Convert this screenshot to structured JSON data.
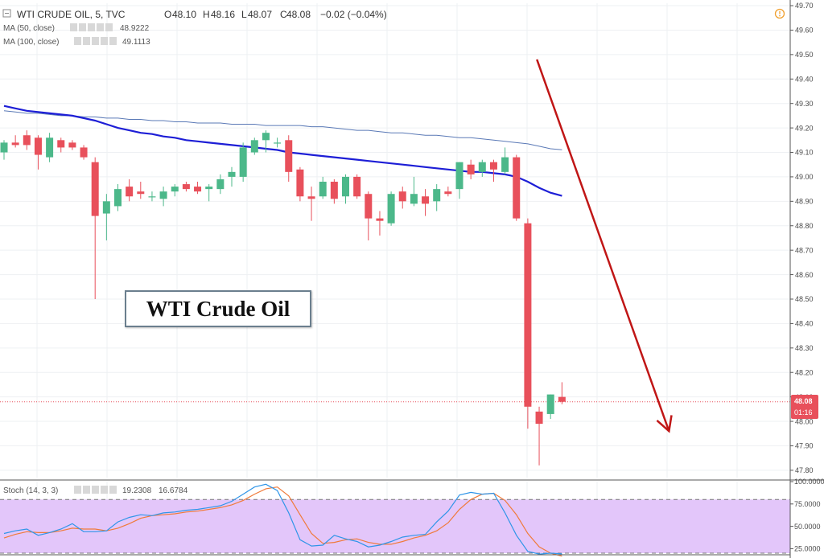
{
  "legend": {
    "symbol": "WTI CRUDE OIL, 5, TVC",
    "ohlc": [
      {
        "k": "O",
        "v": "48.10"
      },
      {
        "k": "H",
        "v": "48.16"
      },
      {
        "k": "L",
        "v": "48.07"
      },
      {
        "k": "C",
        "v": "48.08"
      }
    ],
    "change": "−0.02 (−0.04%)",
    "ma50_label": "MA (50, close)",
    "ma50_value": "48.9222",
    "ma100_label": "MA (100, close)",
    "ma100_value": "49.1113",
    "stoch_label": "Stoch (14, 3, 3)",
    "stoch_k": "19.2308",
    "stoch_d": "16.6784"
  },
  "price_tag": {
    "value": "48.08",
    "countdown": "01:16"
  },
  "overlay_title": "WTI Crude Oil",
  "colors": {
    "up": "#4cb88a",
    "down": "#e8505b",
    "ma50": "#1d1ed6",
    "ma100": "#5a79b6",
    "arrow": "#c01616",
    "stoch_k": "#2f95e8",
    "stoch_d": "#f07a3a",
    "stoch_band": "#e3c6fa",
    "price_line": "#e8505b"
  },
  "icons": {
    "collapse": "collapse-square-icon",
    "alert": "alert-circle-icon"
  },
  "chart_data": {
    "type": "candlestick",
    "y_ticks": [
      "49.70",
      "49.60",
      "49.50",
      "49.40",
      "49.30",
      "49.20",
      "49.10",
      "49.00",
      "48.90",
      "48.80",
      "48.70",
      "48.60",
      "48.50",
      "48.40",
      "48.30",
      "48.20",
      "48.10",
      "48.00",
      "47.90",
      "47.80"
    ],
    "ylim": [
      47.77,
      49.71
    ],
    "candles": [
      {
        "o": 49.1,
        "h": 49.15,
        "l": 49.07,
        "c": 49.14
      },
      {
        "o": 49.14,
        "h": 49.17,
        "l": 49.12,
        "c": 49.13
      },
      {
        "o": 49.17,
        "h": 49.19,
        "l": 49.11,
        "c": 49.13
      },
      {
        "o": 49.16,
        "h": 49.17,
        "l": 49.03,
        "c": 49.09
      },
      {
        "o": 49.08,
        "h": 49.18,
        "l": 49.06,
        "c": 49.16
      },
      {
        "o": 49.15,
        "h": 49.16,
        "l": 49.1,
        "c": 49.12
      },
      {
        "o": 49.14,
        "h": 49.15,
        "l": 49.11,
        "c": 49.12
      },
      {
        "o": 49.12,
        "h": 49.13,
        "l": 49.07,
        "c": 49.08
      },
      {
        "o": 49.06,
        "h": 49.08,
        "l": 48.5,
        "c": 48.84
      },
      {
        "o": 48.85,
        "h": 48.93,
        "l": 48.74,
        "c": 48.9
      },
      {
        "o": 48.88,
        "h": 48.97,
        "l": 48.86,
        "c": 48.95
      },
      {
        "o": 48.96,
        "h": 48.99,
        "l": 48.9,
        "c": 48.92
      },
      {
        "o": 48.94,
        "h": 48.98,
        "l": 48.91,
        "c": 48.93
      },
      {
        "o": 48.92,
        "h": 48.94,
        "l": 48.9,
        "c": 48.92
      },
      {
        "o": 48.91,
        "h": 48.96,
        "l": 48.88,
        "c": 48.94
      },
      {
        "o": 48.94,
        "h": 48.97,
        "l": 48.92,
        "c": 48.96
      },
      {
        "o": 48.97,
        "h": 48.98,
        "l": 48.94,
        "c": 48.95
      },
      {
        "o": 48.96,
        "h": 48.98,
        "l": 48.93,
        "c": 48.94
      },
      {
        "o": 48.95,
        "h": 48.97,
        "l": 48.9,
        "c": 48.96
      },
      {
        "o": 48.95,
        "h": 49.01,
        "l": 48.93,
        "c": 48.99
      },
      {
        "o": 49.0,
        "h": 49.04,
        "l": 48.96,
        "c": 49.02
      },
      {
        "o": 49.0,
        "h": 49.14,
        "l": 48.98,
        "c": 49.12
      },
      {
        "o": 49.1,
        "h": 49.16,
        "l": 49.09,
        "c": 49.15
      },
      {
        "o": 49.15,
        "h": 49.19,
        "l": 49.1,
        "c": 49.18
      },
      {
        "o": 49.14,
        "h": 49.16,
        "l": 49.12,
        "c": 49.14
      },
      {
        "o": 49.15,
        "h": 49.17,
        "l": 48.98,
        "c": 49.02
      },
      {
        "o": 49.03,
        "h": 49.04,
        "l": 48.9,
        "c": 48.92
      },
      {
        "o": 48.92,
        "h": 48.96,
        "l": 48.82,
        "c": 48.91
      },
      {
        "o": 48.92,
        "h": 49.0,
        "l": 48.91,
        "c": 48.98
      },
      {
        "o": 48.98,
        "h": 48.99,
        "l": 48.89,
        "c": 48.91
      },
      {
        "o": 48.92,
        "h": 49.01,
        "l": 48.89,
        "c": 49.0
      },
      {
        "o": 49.0,
        "h": 49.01,
        "l": 48.91,
        "c": 48.92
      },
      {
        "o": 48.93,
        "h": 48.94,
        "l": 48.74,
        "c": 48.83
      },
      {
        "o": 48.83,
        "h": 48.86,
        "l": 48.76,
        "c": 48.82
      },
      {
        "o": 48.81,
        "h": 48.94,
        "l": 48.8,
        "c": 48.93
      },
      {
        "o": 48.94,
        "h": 48.96,
        "l": 48.87,
        "c": 48.9
      },
      {
        "o": 48.89,
        "h": 49.0,
        "l": 48.88,
        "c": 48.93
      },
      {
        "o": 48.92,
        "h": 48.95,
        "l": 48.84,
        "c": 48.89
      },
      {
        "o": 48.9,
        "h": 48.97,
        "l": 48.86,
        "c": 48.95
      },
      {
        "o": 48.94,
        "h": 48.96,
        "l": 48.92,
        "c": 48.93
      },
      {
        "o": 48.95,
        "h": 49.06,
        "l": 48.91,
        "c": 49.06
      },
      {
        "o": 49.05,
        "h": 49.07,
        "l": 48.99,
        "c": 49.01
      },
      {
        "o": 49.02,
        "h": 49.07,
        "l": 49.0,
        "c": 49.06
      },
      {
        "o": 49.06,
        "h": 49.07,
        "l": 48.98,
        "c": 49.03
      },
      {
        "o": 49.02,
        "h": 49.12,
        "l": 49.01,
        "c": 49.08
      },
      {
        "o": 49.08,
        "h": 49.09,
        "l": 48.82,
        "c": 48.83
      },
      {
        "o": 48.81,
        "h": 48.83,
        "l": 47.97,
        "c": 48.06
      },
      {
        "o": 48.04,
        "h": 48.06,
        "l": 47.82,
        "c": 47.99
      },
      {
        "o": 48.03,
        "h": 48.11,
        "l": 48.01,
        "c": 48.11
      },
      {
        "o": 48.1,
        "h": 48.16,
        "l": 48.07,
        "c": 48.08
      }
    ],
    "ma50": [
      49.29,
      49.28,
      49.27,
      49.265,
      49.26,
      49.255,
      49.25,
      49.24,
      49.23,
      49.215,
      49.2,
      49.19,
      49.18,
      49.175,
      49.165,
      49.16,
      49.15,
      49.145,
      49.14,
      49.135,
      49.13,
      49.125,
      49.12,
      49.115,
      49.11,
      49.1,
      49.095,
      49.09,
      49.085,
      49.08,
      49.075,
      49.07,
      49.065,
      49.06,
      49.055,
      49.05,
      49.045,
      49.04,
      49.035,
      49.03,
      49.025,
      49.02,
      49.02,
      49.015,
      49.01,
      49.0,
      48.98,
      48.955,
      48.935,
      48.922
    ],
    "ma100": [
      49.27,
      49.265,
      49.26,
      49.26,
      49.255,
      49.25,
      49.25,
      49.245,
      49.245,
      49.24,
      49.24,
      49.235,
      49.235,
      49.23,
      49.23,
      49.225,
      49.225,
      49.22,
      49.22,
      49.22,
      49.215,
      49.215,
      49.215,
      49.21,
      49.21,
      49.21,
      49.21,
      49.205,
      49.205,
      49.2,
      49.195,
      49.19,
      49.19,
      49.185,
      49.18,
      49.18,
      49.175,
      49.17,
      49.17,
      49.165,
      49.16,
      49.16,
      49.155,
      49.15,
      49.145,
      49.14,
      49.135,
      49.125,
      49.115,
      49.111
    ],
    "arrow": {
      "from_index": 46.8,
      "from_price": 49.48,
      "to_index": 58.4,
      "to_price": 47.96
    },
    "stoch": {
      "y_ticks": [
        "100.0000",
        "75.0000",
        "50.0000",
        "25.0000"
      ],
      "ylim": [
        20,
        100
      ],
      "overbought": 80,
      "oversold": 20,
      "k": [
        42,
        45,
        47,
        40,
        43,
        47,
        53,
        44,
        44,
        45,
        55,
        60,
        63,
        62,
        65,
        66,
        68,
        69,
        71,
        73,
        78,
        86,
        94,
        97,
        90,
        65,
        35,
        28,
        29,
        40,
        36,
        33,
        27,
        29,
        33,
        38,
        40,
        41,
        55,
        67,
        85,
        88,
        86,
        87,
        65,
        40,
        22,
        19,
        20,
        19.23
      ],
      "d": [
        37,
        41,
        44,
        43,
        43,
        45,
        48,
        47,
        47,
        45,
        48,
        53,
        59,
        62,
        63,
        64,
        66,
        67,
        69,
        71,
        74,
        79,
        86,
        92,
        94,
        84,
        63,
        42,
        31,
        32,
        35,
        36,
        32,
        30,
        30,
        33,
        37,
        40,
        45,
        54,
        69,
        80,
        86,
        87,
        79,
        63,
        42,
        27,
        20,
        16.68
      ]
    }
  }
}
